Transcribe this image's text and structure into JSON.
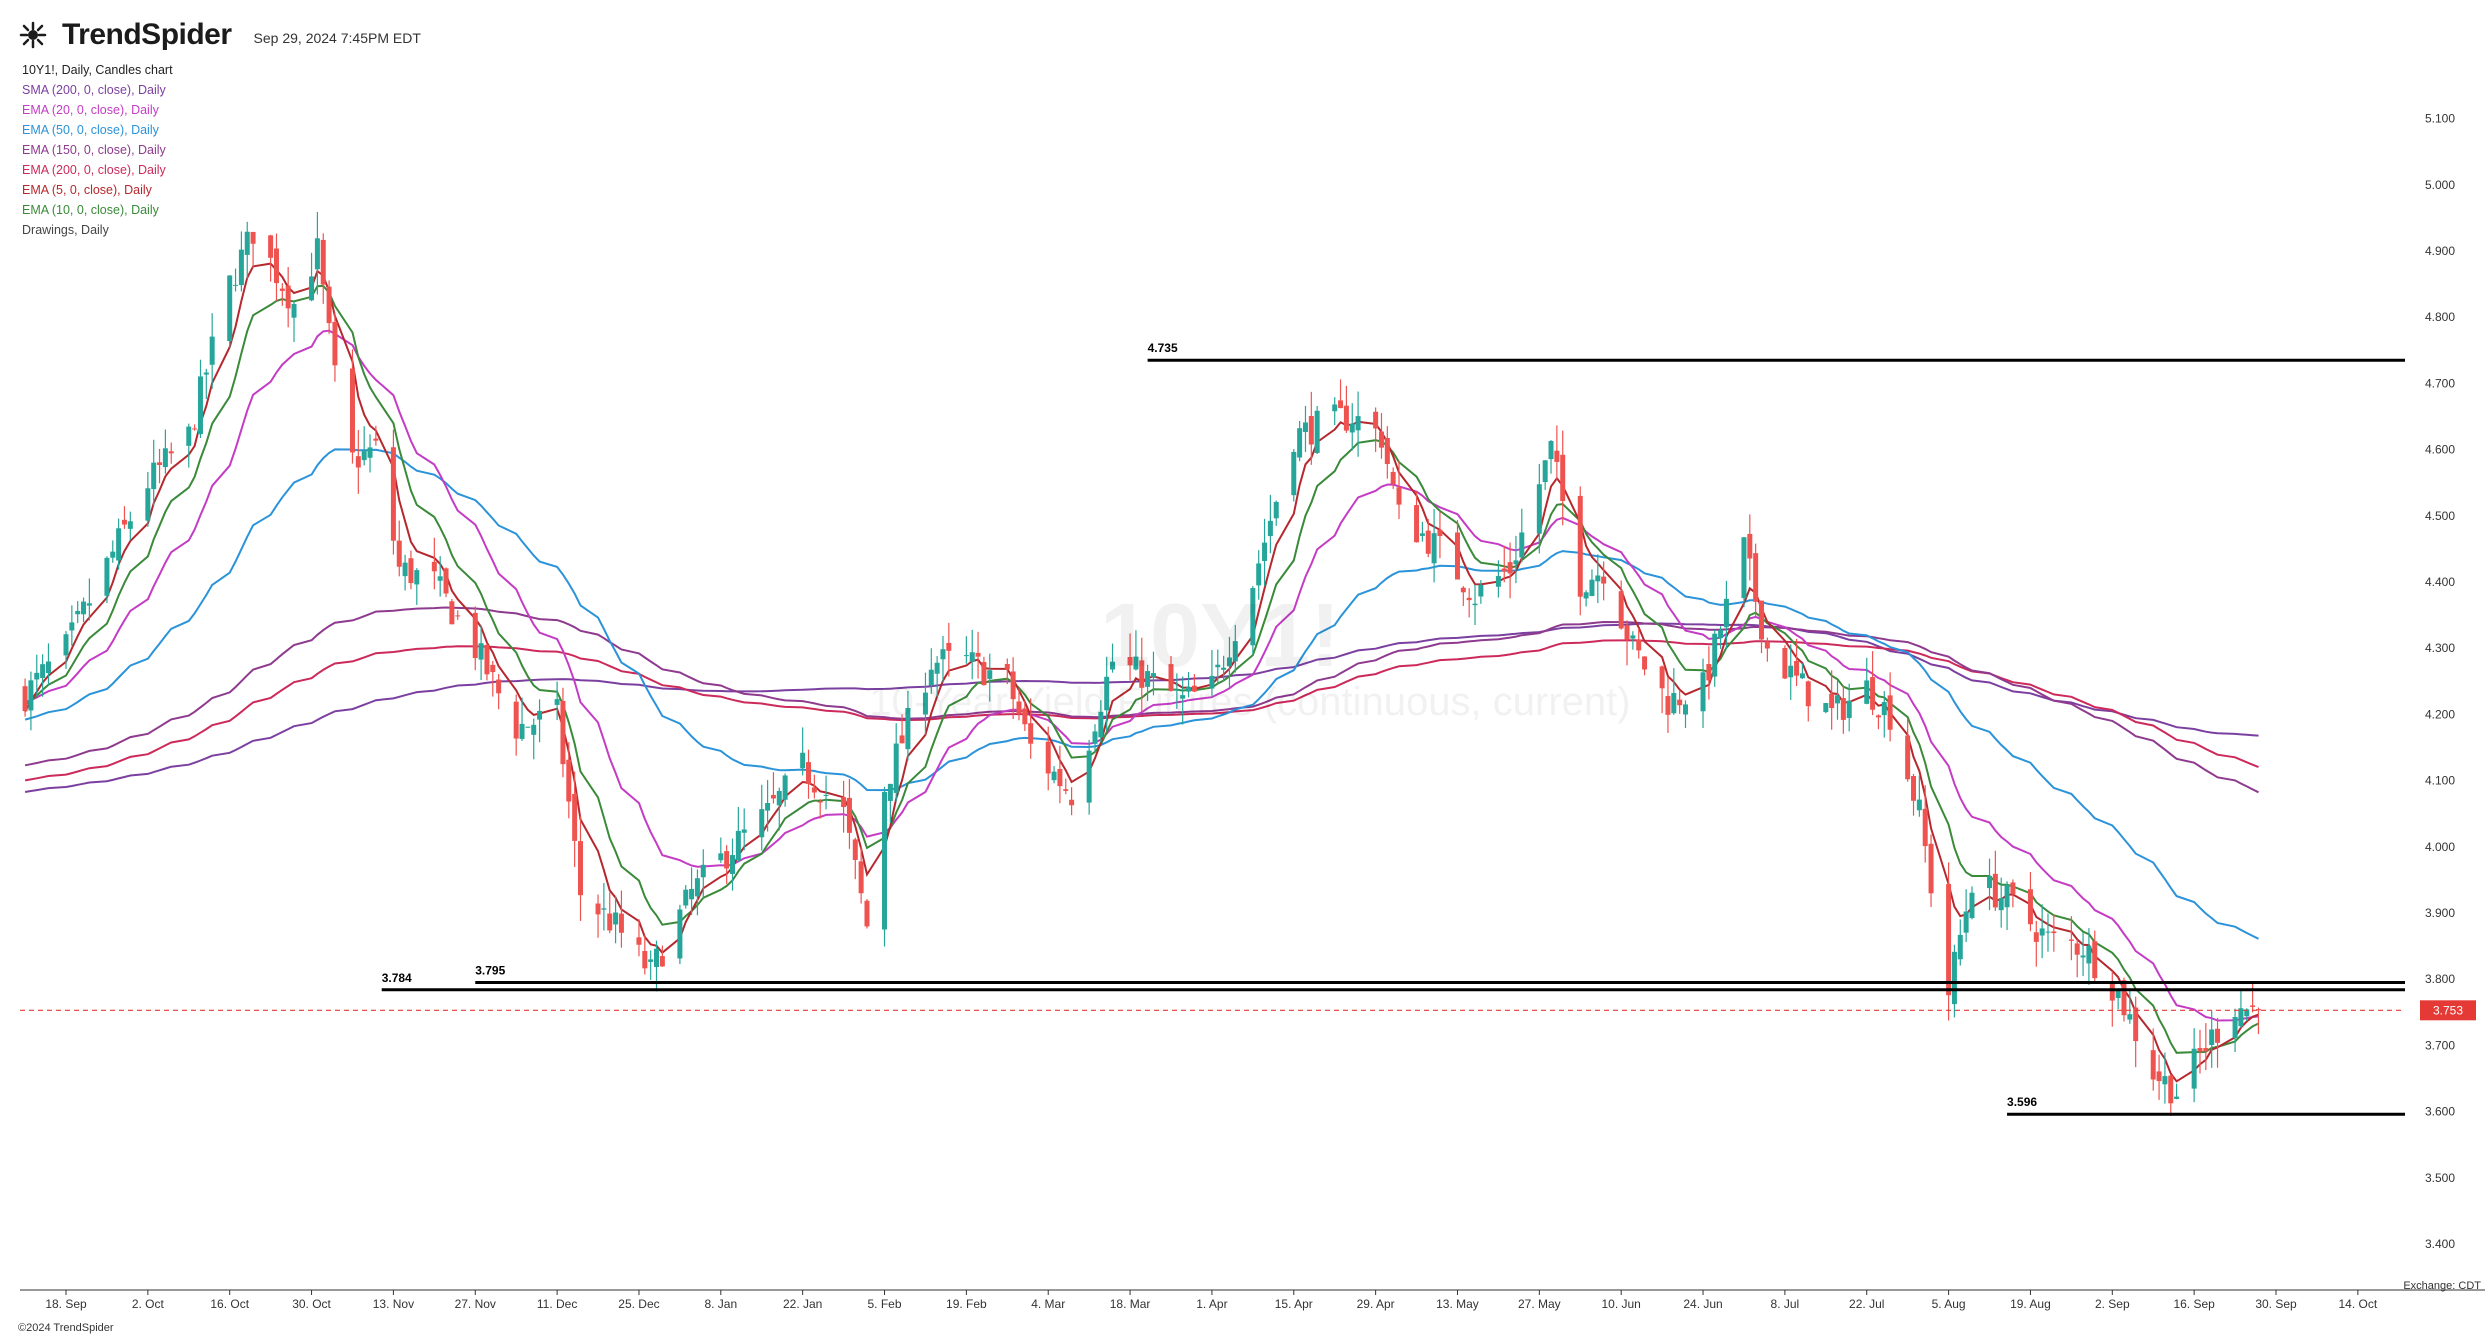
{
  "header": {
    "logo_text": "TrendSpider",
    "date": "Sep 29, 2024 7:45PM EDT"
  },
  "legend": {
    "title": "10Y1!, Daily, Candles chart",
    "items": [
      {
        "label": "SMA (200, 0, close), Daily",
        "color": "#7b3fa0"
      },
      {
        "label": "EMA (20, 0, close), Daily",
        "color": "#c43cc4"
      },
      {
        "label": "EMA (50, 0, close), Daily",
        "color": "#2b93d9"
      },
      {
        "label": "EMA (150, 0, close), Daily",
        "color": "#8e3a8e"
      },
      {
        "label": "EMA (200, 0, close), Daily",
        "color": "#cc2a5a"
      },
      {
        "label": "EMA (5, 0, close), Daily",
        "color": "#b5282e"
      },
      {
        "label": "EMA (10, 0, close), Daily",
        "color": "#3a8a3a"
      },
      {
        "label": "Drawings, Daily",
        "color": "#444444"
      }
    ]
  },
  "watermark": {
    "symbol": "10Y1!",
    "description": "10-Year Yield Futures (continuous, current)"
  },
  "footer": {
    "copyright": "©2024 TrendSpider",
    "exchange": "Exchange: CDT"
  },
  "colors": {
    "up": "#26a69a",
    "down": "#ef5350",
    "last_price": "#e53935"
  },
  "chart_data": {
    "type": "candlestick",
    "instrument": "10Y1!",
    "timeframe": "Daily",
    "ylim": [
      3.36,
      5.12
    ],
    "y_ticks": [
      "5.100",
      "5.000",
      "4.900",
      "4.800",
      "4.700",
      "4.600",
      "4.500",
      "4.400",
      "4.300",
      "4.200",
      "4.100",
      "4.000",
      "3.900",
      "3.800",
      "3.700",
      "3.600",
      "3.500",
      "3.400"
    ],
    "x_ticks": [
      "18. Sep",
      "2. Oct",
      "16. Oct",
      "30. Oct",
      "13. Nov",
      "27. Nov",
      "11. Dec",
      "25. Dec",
      "8. Jan",
      "22. Jan",
      "5. Feb",
      "19. Feb",
      "4. Mar",
      "18. Mar",
      "1. Apr",
      "15. Apr",
      "29. Apr",
      "13. May",
      "27. May",
      "10. Jun",
      "24. Jun",
      "8. Jul",
      "22. Jul",
      "5. Aug",
      "19. Aug",
      "2. Sep",
      "16. Sep",
      "30. Sep",
      "14. Oct"
    ],
    "last_price": 3.753,
    "last_price_label": "3.753",
    "horizontal_levels": [
      {
        "label": "4.735",
        "value": 4.735,
        "from": "21. Mar",
        "to": "end"
      },
      {
        "label": "3.795",
        "value": 3.795,
        "from": "27. Nov",
        "to": "end"
      },
      {
        "label": "3.784",
        "value": 3.784,
        "from": "11. Nov",
        "to": "end"
      },
      {
        "label": "3.596",
        "value": 3.596,
        "from": "15. Aug",
        "to": "end"
      }
    ],
    "close_keypoints": [
      [
        "11. Sep",
        4.23
      ],
      [
        "18. Sep",
        4.3
      ],
      [
        "2. Oct",
        4.55
      ],
      [
        "9. Oct",
        4.62
      ],
      [
        "16. Oct",
        4.85
      ],
      [
        "20. Oct",
        4.93
      ],
      [
        "27. Oct",
        4.82
      ],
      [
        "31. Oct",
        4.9
      ],
      [
        "5. Nov",
        4.58
      ],
      [
        "10. Nov",
        4.6
      ],
      [
        "14. Nov",
        4.42
      ],
      [
        "20. Nov",
        4.4
      ],
      [
        "27. Nov",
        4.3
      ],
      [
        "4. Dec",
        4.18
      ],
      [
        "11. Dec",
        4.2
      ],
      [
        "15. Dec",
        3.93
      ],
      [
        "21. Dec",
        3.88
      ],
      [
        "27. Dec",
        3.81
      ],
      [
        "3. Jan",
        3.93
      ],
      [
        "10. Jan",
        4.0
      ],
      [
        "16. Jan",
        4.05
      ],
      [
        "22. Jan",
        4.12
      ],
      [
        "29. Jan",
        4.05
      ],
      [
        "2. Feb",
        3.88
      ],
      [
        "5. Feb",
        4.09
      ],
      [
        "13. Feb",
        4.28
      ],
      [
        "19. Feb",
        4.28
      ],
      [
        "26. Feb",
        4.25
      ],
      [
        "1. Mar",
        4.15
      ],
      [
        "8. Mar",
        4.08
      ],
      [
        "15. Mar",
        4.28
      ],
      [
        "20. Mar",
        4.26
      ],
      [
        "27. Mar",
        4.22
      ],
      [
        "1. Apr",
        4.24
      ],
      [
        "8. Apr",
        4.4
      ],
      [
        "15. Apr",
        4.62
      ],
      [
        "20. Apr",
        4.64
      ],
      [
        "25. Apr",
        4.65
      ],
      [
        "30. Apr",
        4.62
      ],
      [
        "3. May",
        4.5
      ],
      [
        "10. May",
        4.45
      ],
      [
        "16. May",
        4.38
      ],
      [
        "22. May",
        4.42
      ],
      [
        "29. May",
        4.6
      ],
      [
        "3. Jun",
        4.4
      ],
      [
        "7. Jun",
        4.42
      ],
      [
        "12. Jun",
        4.3
      ],
      [
        "18. Jun",
        4.22
      ],
      [
        "24. Jun",
        4.24
      ],
      [
        "1. Jul",
        4.45
      ],
      [
        "5. Jul",
        4.3
      ],
      [
        "10. Jul",
        4.25
      ],
      [
        "16. Jul",
        4.2
      ],
      [
        "22. Jul",
        4.24
      ],
      [
        "26. Jul",
        4.2
      ],
      [
        "31. Jul",
        4.05
      ],
      [
        "5. Aug",
        3.78
      ],
      [
        "9. Aug",
        3.95
      ],
      [
        "15. Aug",
        3.92
      ],
      [
        "22. Aug",
        3.86
      ],
      [
        "28. Aug",
        3.85
      ],
      [
        "3. Sep",
        3.78
      ],
      [
        "9. Sep",
        3.66
      ],
      [
        "13. Sep",
        3.63
      ],
      [
        "18. Sep",
        3.7
      ],
      [
        "23. Sep",
        3.76
      ],
      [
        "27. Sep",
        3.753
      ]
    ]
  }
}
